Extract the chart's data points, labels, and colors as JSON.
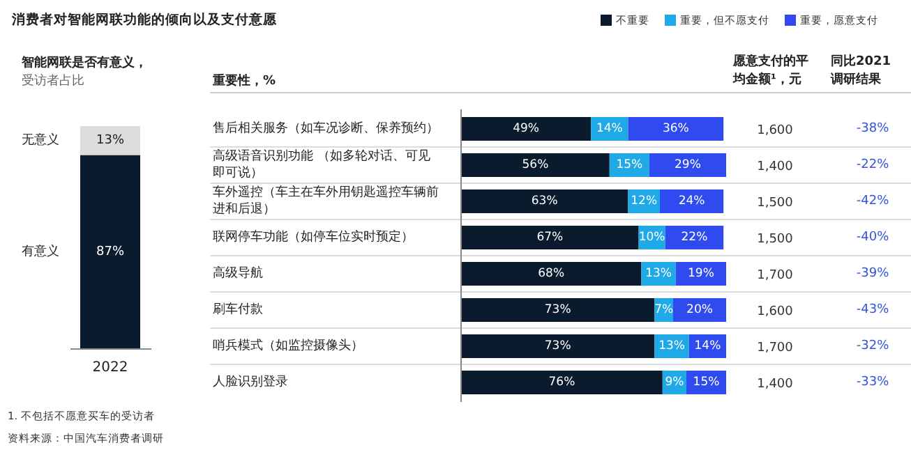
{
  "chart_data": [
    {
      "type": "bar",
      "title": "智能网联是否有意义，",
      "subtitle": "受访者占比",
      "categories": [
        "2022"
      ],
      "stacked": true,
      "series": [
        {
          "name": "有意义",
          "color": "#0b1b2e",
          "values": [
            87
          ],
          "value_labels": [
            "87%"
          ]
        },
        {
          "name": "无意义",
          "color": "#dcdcdc",
          "values": [
            13
          ],
          "value_labels": [
            "13%"
          ]
        }
      ],
      "annotations": [
        "1. 不包括不愿意买车的受访者",
        "资料来源：中国汽车消费者调研"
      ]
    },
    {
      "type": "bar",
      "title": "消费者对智能网联功能的倾向以及支付意愿",
      "subtitle": "重要性，%",
      "orientation": "horizontal",
      "stacked": true,
      "legend": "top right",
      "categories": [
        "售后相关服务（如车况诊断、保养预约）",
        "高级语音识别功能 （如多轮对话、可见即可说）",
        "车外遥控（车主在车外用钥匙遥控车辆前进和后退）",
        "联网停车功能（如停车位实时预定）",
        "高级导航",
        "刷车付款",
        "哨兵模式（如监控摄像头）",
        "人脸识别登录"
      ],
      "series": [
        {
          "name": "不重要",
          "color": "#0b1b2e",
          "values": [
            49,
            56,
            63,
            67,
            68,
            73,
            73,
            76
          ],
          "value_labels": [
            "49%",
            "56%",
            "63%",
            "67%",
            "68%",
            "73%",
            "73%",
            "76%"
          ]
        },
        {
          "name": "重要，但不愿支付",
          "color": "#1fa9e6",
          "values": [
            14,
            15,
            12,
            10,
            13,
            7,
            13,
            9
          ],
          "value_labels": [
            "14%",
            "15%",
            "12%",
            "10%",
            "13%",
            "7%",
            "13%",
            "9%"
          ]
        },
        {
          "name": "重要，愿意支付",
          "color": "#2f4bf0",
          "values": [
            36,
            29,
            24,
            22,
            19,
            20,
            14,
            15
          ],
          "value_labels": [
            "36%",
            "29%",
            "24%",
            "22%",
            "19%",
            "20%",
            "14%",
            "15%"
          ]
        }
      ]
    },
    {
      "type": "other",
      "title": "愿意支付的平均金额¹，元",
      "annotations": [
        "1,600",
        "1,400",
        "1,500",
        "1,500",
        "1,700",
        "1,600",
        "1,700",
        "1,400"
      ]
    },
    {
      "type": "other",
      "title": "同比2021调研结果",
      "annotations": [
        "-38%",
        "-22%",
        "-42%",
        "-40%",
        "-39%",
        "-43%",
        "-32%",
        "-33%"
      ]
    }
  ]
}
